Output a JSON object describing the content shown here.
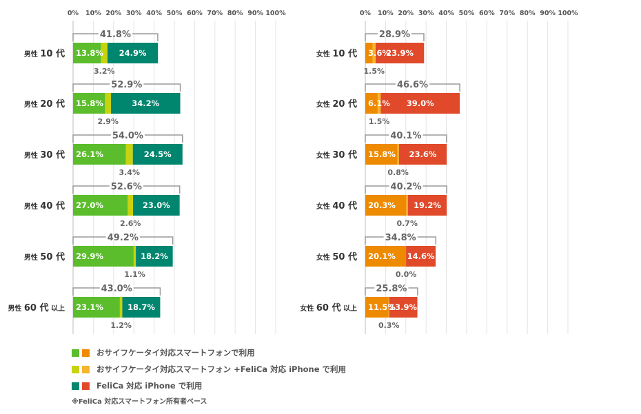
{
  "colors": {
    "male_single": "#5bbd2b",
    "male_both": "#c7d30f",
    "male_iphone": "#00856e",
    "female_single": "#ee8a00",
    "female_both": "#f7b52c",
    "female_iphone": "#e04a2b"
  },
  "legend": {
    "items": [
      {
        "label": "おサイフケータイ対応スマートフォンで利用",
        "male_color": "#5bbd2b",
        "female_color": "#ee8a00"
      },
      {
        "label": "おサイフケータイ対応スマートフォン +FeliCa 対応 iPhone で利用",
        "male_color": "#c7d30f",
        "female_color": "#f7b52c"
      },
      {
        "label": "FeliCa 対応 iPhone で利用",
        "male_color": "#00856e",
        "female_color": "#e04a2b"
      }
    ]
  },
  "footnote": "※FeliCa 対応スマートフォン所有者ベース",
  "chart_data": [
    {
      "type": "bar",
      "orientation": "horizontal",
      "stacked": true,
      "xlim": [
        0,
        100
      ],
      "x_ticks": [
        "0%",
        "10%",
        "20%",
        "30%",
        "40%",
        "50%",
        "60%",
        "70%",
        "80%",
        "90%",
        "100%"
      ],
      "categories": [
        {
          "prefix": "男性",
          "age": "10 代",
          "suffix": ""
        },
        {
          "prefix": "男性",
          "age": "20 代",
          "suffix": ""
        },
        {
          "prefix": "男性",
          "age": "30 代",
          "suffix": ""
        },
        {
          "prefix": "男性",
          "age": "40 代",
          "suffix": ""
        },
        {
          "prefix": "男性",
          "age": "50 代",
          "suffix": ""
        },
        {
          "prefix": "男性",
          "age": "60 代",
          "suffix": "以上"
        }
      ],
      "series": [
        {
          "name": "おサイフケータイ対応スマートフォンで利用",
          "color": "#5bbd2b",
          "values": [
            13.8,
            15.8,
            26.1,
            27.0,
            29.9,
            23.1
          ]
        },
        {
          "name": "おサイフケータイ対応スマートフォン +FeliCa 対応 iPhone で利用",
          "color": "#c7d30f",
          "values": [
            3.2,
            2.9,
            3.4,
            2.6,
            1.1,
            1.2
          ]
        },
        {
          "name": "FeliCa 対応 iPhone で利用",
          "color": "#00856e",
          "values": [
            24.9,
            34.2,
            24.5,
            23.0,
            18.2,
            18.7
          ]
        }
      ],
      "totals": [
        41.8,
        52.9,
        54.0,
        52.6,
        49.2,
        43.0
      ]
    },
    {
      "type": "bar",
      "orientation": "horizontal",
      "stacked": true,
      "xlim": [
        0,
        100
      ],
      "x_ticks": [
        "0%",
        "10%",
        "20%",
        "30%",
        "40%",
        "50%",
        "60%",
        "70%",
        "80%",
        "90%",
        "100%"
      ],
      "categories": [
        {
          "prefix": "女性",
          "age": "10 代",
          "suffix": ""
        },
        {
          "prefix": "女性",
          "age": "20 代",
          "suffix": ""
        },
        {
          "prefix": "女性",
          "age": "30 代",
          "suffix": ""
        },
        {
          "prefix": "女性",
          "age": "40 代",
          "suffix": ""
        },
        {
          "prefix": "女性",
          "age": "50 代",
          "suffix": ""
        },
        {
          "prefix": "女性",
          "age": "60 代",
          "suffix": "以上"
        }
      ],
      "series": [
        {
          "name": "おサイフケータイ対応スマートフォンで利用",
          "color": "#ee8a00",
          "values": [
            3.6,
            6.1,
            15.8,
            20.3,
            20.1,
            11.5
          ]
        },
        {
          "name": "おサイフケータイ対応スマートフォン +FeliCa 対応 iPhone で利用",
          "color": "#f7b52c",
          "values": [
            1.5,
            1.5,
            0.8,
            0.7,
            0.0,
            0.3
          ]
        },
        {
          "name": "FeliCa 対応 iPhone で利用",
          "color": "#e04a2b",
          "values": [
            23.9,
            39.0,
            23.6,
            19.2,
            14.6,
            13.9
          ]
        }
      ],
      "totals": [
        28.9,
        46.6,
        40.1,
        40.2,
        34.8,
        25.8
      ]
    }
  ]
}
